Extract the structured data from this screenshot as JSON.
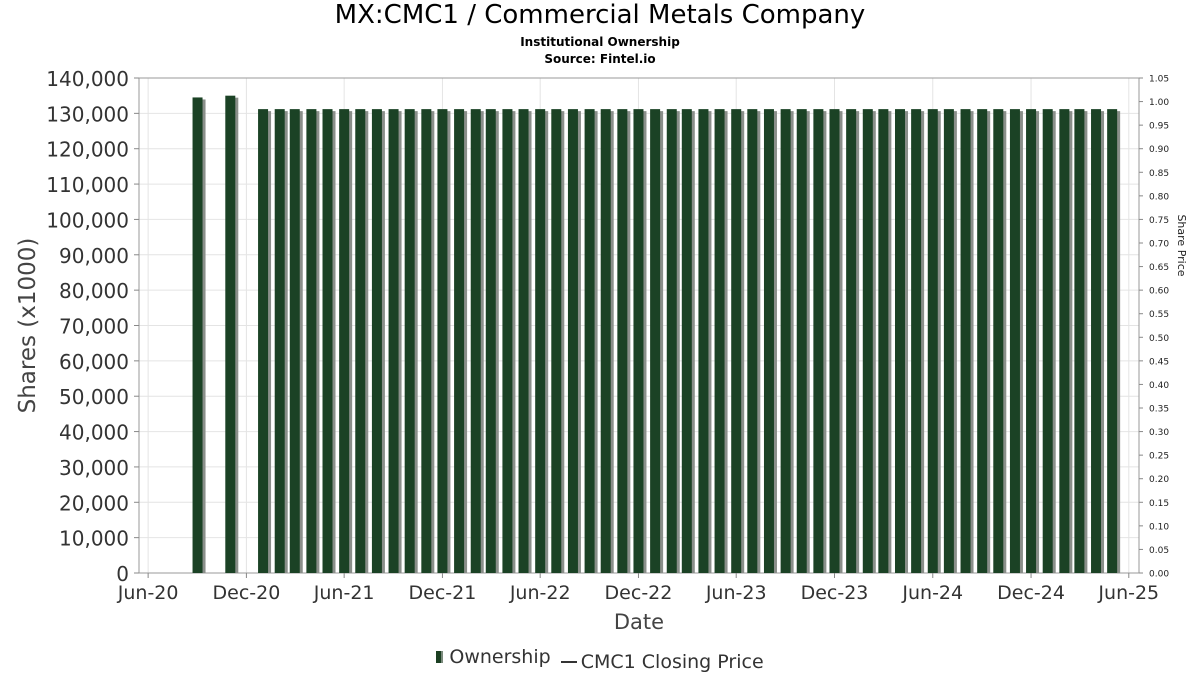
{
  "header": {
    "title": "MX:CMC1 / Commercial Metals Company",
    "subtitle": "Institutional Ownership",
    "source": "Source: Fintel.io"
  },
  "legend": {
    "ownership": "Ownership",
    "price": "CMC1 Closing Price"
  },
  "colors": {
    "bar": "#1b4225",
    "bar_shadow": "#8a8f8a",
    "grid": "#e4e4e4",
    "axis_text": "#333333"
  },
  "chart_data": {
    "type": "bar",
    "xlabel": "Date",
    "ylabel": "Shares (x1000)",
    "y2label": "Share Price",
    "ylim": [
      0,
      140000
    ],
    "y2lim": [
      0,
      1.05
    ],
    "xlim": [
      "2020-05-15",
      "2025-06-20"
    ],
    "yticks": [
      "0",
      "10,000",
      "20,000",
      "30,000",
      "40,000",
      "50,000",
      "60,000",
      "70,000",
      "80,000",
      "90,000",
      "100,000",
      "110,000",
      "120,000",
      "130,000",
      "140,000"
    ],
    "y2ticks": [
      "0.00",
      "0.05",
      "0.10",
      "0.15",
      "0.20",
      "0.25",
      "0.30",
      "0.35",
      "0.40",
      "0.45",
      "0.50",
      "0.55",
      "0.60",
      "0.65",
      "0.70",
      "0.75",
      "0.80",
      "0.85",
      "0.90",
      "0.95",
      "1.00",
      "1.05"
    ],
    "xticks": [
      {
        "label": "Jun-20",
        "date": "2020-06-01"
      },
      {
        "label": "Dec-20",
        "date": "2020-12-01"
      },
      {
        "label": "Jun-21",
        "date": "2021-06-01"
      },
      {
        "label": "Dec-21",
        "date": "2021-12-01"
      },
      {
        "label": "Jun-22",
        "date": "2022-06-01"
      },
      {
        "label": "Dec-22",
        "date": "2022-12-01"
      },
      {
        "label": "Jun-23",
        "date": "2023-06-01"
      },
      {
        "label": "Dec-23",
        "date": "2023-12-01"
      },
      {
        "label": "Jun-24",
        "date": "2024-06-01"
      },
      {
        "label": "Dec-24",
        "date": "2024-12-01"
      },
      {
        "label": "Jun-25",
        "date": "2025-06-01"
      }
    ],
    "series": [
      {
        "name": "Ownership",
        "points": [
          {
            "date": "2020-09-01",
            "value": 134500
          },
          {
            "date": "2020-11-01",
            "value": 135000
          },
          {
            "date": "2021-01-01",
            "value": 131200
          },
          {
            "date": "2021-02-01",
            "value": 131200
          },
          {
            "date": "2021-03-01",
            "value": 131200
          },
          {
            "date": "2021-04-01",
            "value": 131200
          },
          {
            "date": "2021-05-01",
            "value": 131200
          },
          {
            "date": "2021-06-01",
            "value": 131200
          },
          {
            "date": "2021-07-01",
            "value": 131200
          },
          {
            "date": "2021-08-01",
            "value": 131200
          },
          {
            "date": "2021-09-01",
            "value": 131200
          },
          {
            "date": "2021-10-01",
            "value": 131200
          },
          {
            "date": "2021-11-01",
            "value": 131200
          },
          {
            "date": "2021-12-01",
            "value": 131200
          },
          {
            "date": "2022-01-01",
            "value": 131200
          },
          {
            "date": "2022-02-01",
            "value": 131200
          },
          {
            "date": "2022-03-01",
            "value": 131200
          },
          {
            "date": "2022-04-01",
            "value": 131200
          },
          {
            "date": "2022-05-01",
            "value": 131200
          },
          {
            "date": "2022-06-01",
            "value": 131200
          },
          {
            "date": "2022-07-01",
            "value": 131200
          },
          {
            "date": "2022-08-01",
            "value": 131200
          },
          {
            "date": "2022-09-01",
            "value": 131200
          },
          {
            "date": "2022-10-01",
            "value": 131200
          },
          {
            "date": "2022-11-01",
            "value": 131200
          },
          {
            "date": "2022-12-01",
            "value": 131200
          },
          {
            "date": "2023-01-01",
            "value": 131200
          },
          {
            "date": "2023-02-01",
            "value": 131200
          },
          {
            "date": "2023-03-01",
            "value": 131200
          },
          {
            "date": "2023-04-01",
            "value": 131200
          },
          {
            "date": "2023-05-01",
            "value": 131200
          },
          {
            "date": "2023-06-01",
            "value": 131200
          },
          {
            "date": "2023-07-01",
            "value": 131200
          },
          {
            "date": "2023-08-01",
            "value": 131200
          },
          {
            "date": "2023-09-01",
            "value": 131200
          },
          {
            "date": "2023-10-01",
            "value": 131200
          },
          {
            "date": "2023-11-01",
            "value": 131200
          },
          {
            "date": "2023-12-01",
            "value": 131200
          },
          {
            "date": "2024-01-01",
            "value": 131200
          },
          {
            "date": "2024-02-01",
            "value": 131200
          },
          {
            "date": "2024-03-01",
            "value": 131200
          },
          {
            "date": "2024-04-01",
            "value": 131200
          },
          {
            "date": "2024-05-01",
            "value": 131200
          },
          {
            "date": "2024-06-01",
            "value": 131200
          },
          {
            "date": "2024-07-01",
            "value": 131200
          },
          {
            "date": "2024-08-01",
            "value": 131200
          },
          {
            "date": "2024-09-01",
            "value": 131200
          },
          {
            "date": "2024-10-01",
            "value": 131200
          },
          {
            "date": "2024-11-01",
            "value": 131200
          },
          {
            "date": "2024-12-01",
            "value": 131200
          },
          {
            "date": "2025-01-01",
            "value": 131200
          },
          {
            "date": "2025-02-01",
            "value": 131200
          },
          {
            "date": "2025-03-01",
            "value": 131200
          },
          {
            "date": "2025-04-01",
            "value": 131200
          },
          {
            "date": "2025-05-01",
            "value": 131200
          }
        ]
      },
      {
        "name": "CMC1 Closing Price",
        "points": []
      }
    ],
    "grid": true,
    "legend_position": "bottom-center"
  }
}
